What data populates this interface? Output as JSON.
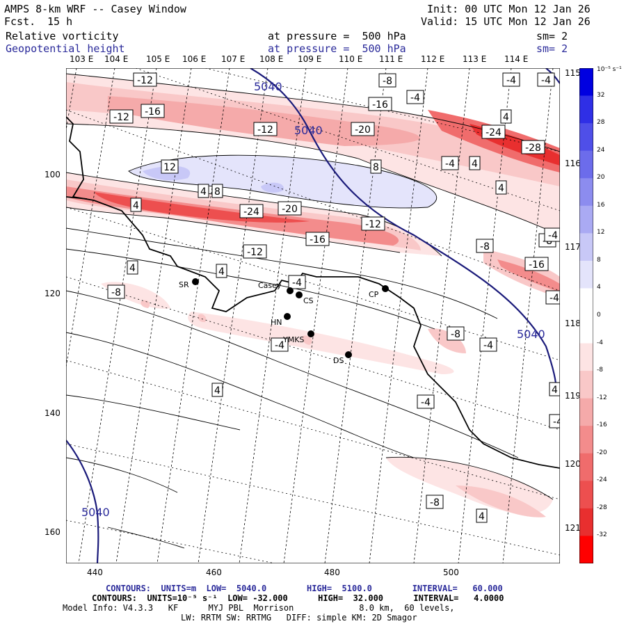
{
  "header": {
    "title": "AMPS 8-km WRF -- Casey Window",
    "fcst_label": "Fcst.",
    "fcst_value": "15 h",
    "init": "Init: 00 UTC Mon 12 Jan 26",
    "valid": "Valid: 15 UTC Mon 12 Jan 26",
    "field1": {
      "name": "Relative vorticity",
      "level": "at pressure =  500 hPa",
      "sm": "sm= 2"
    },
    "field2": {
      "name": "Geopotential height",
      "level": "at pressure =  500 hPa",
      "sm": "sm= 2"
    }
  },
  "longitudes_top": [
    "103 E",
    "104 E",
    "105 E",
    "106 E",
    "107 E",
    "108 E",
    "109 E",
    "110 E",
    "111 E",
    "112 E",
    "113 E",
    "114 E"
  ],
  "longitudes_right": [
    "115 E",
    "116 E",
    "117 E",
    "118 E",
    "119 E",
    "120 E",
    "121 E"
  ],
  "x_axis_ticks": [
    "440",
    "460",
    "480",
    "500"
  ],
  "y_axis_ticks": [
    "100",
    "120",
    "140",
    "160"
  ],
  "colorbar": {
    "unit": "10⁻⁵ s⁻¹",
    "labels": [
      "32",
      "28",
      "24",
      "20",
      "16",
      "12",
      "8",
      "4",
      "0",
      "-4",
      "-8",
      "-12",
      "-16",
      "-20",
      "-24",
      "-28",
      "-32"
    ],
    "colors": [
      "#0000e0",
      "#2f2fe6",
      "#4f4fe8",
      "#6c6ceb",
      "#8c8cef",
      "#aaaaf3",
      "#c8c8f7",
      "#e4e4fb",
      "#ffffff",
      "#ffffff",
      "#fde4e4",
      "#f9c8c8",
      "#f5aaaa",
      "#f38c8c",
      "#f06c6c",
      "#ed4f4f",
      "#e82f2f",
      "#ff0000"
    ]
  },
  "stations": [
    {
      "id": "SR",
      "label": "SR"
    },
    {
      "id": "casey",
      "label": "Casey"
    },
    {
      "id": "CS",
      "label": "CS"
    },
    {
      "id": "CP",
      "label": "CP"
    },
    {
      "id": "HN",
      "label": "HN"
    },
    {
      "id": "YMKS",
      "label": "YMKS"
    },
    {
      "id": "DS",
      "label": "DS"
    }
  ],
  "contour_labels": {
    "height": [
      "5040",
      "5040",
      "5040",
      "5040"
    ],
    "vorticity": [
      "-12",
      "-8",
      "-4",
      "-4",
      "-16",
      "-12",
      "-16",
      "-4",
      "-12",
      "-20",
      "-24",
      "-28",
      "4",
      "-4",
      "4",
      "12",
      "8",
      "4",
      "4",
      "8",
      "4",
      "-24",
      "-20",
      "-12",
      "-16",
      "-12",
      "-8",
      "-8",
      "-4",
      "-16",
      "4",
      "4",
      "-4",
      "-8",
      "-4",
      "-8",
      "-4",
      "-4",
      "-4",
      "4",
      "4",
      "-4",
      "-8",
      "4"
    ]
  },
  "footer": {
    "line1_contours": "CONTOURS:  UNITS=m  LOW=  5040.0        HIGH=  5100.0        INTERVAL=   60.000",
    "line2_contours": "CONTOURS:  UNITS=10⁻⁵ s⁻¹  LOW= -32.000      HIGH=  32.000      INTERVAL=   4.0000",
    "line3": "Model Info: V4.3.3   KF      MYJ PBL  Morrison             8.0 km,  60 levels,",
    "line4": "LW: RRTM SW: RRTMG   DIFF: simple KM: 2D Smagor"
  }
}
